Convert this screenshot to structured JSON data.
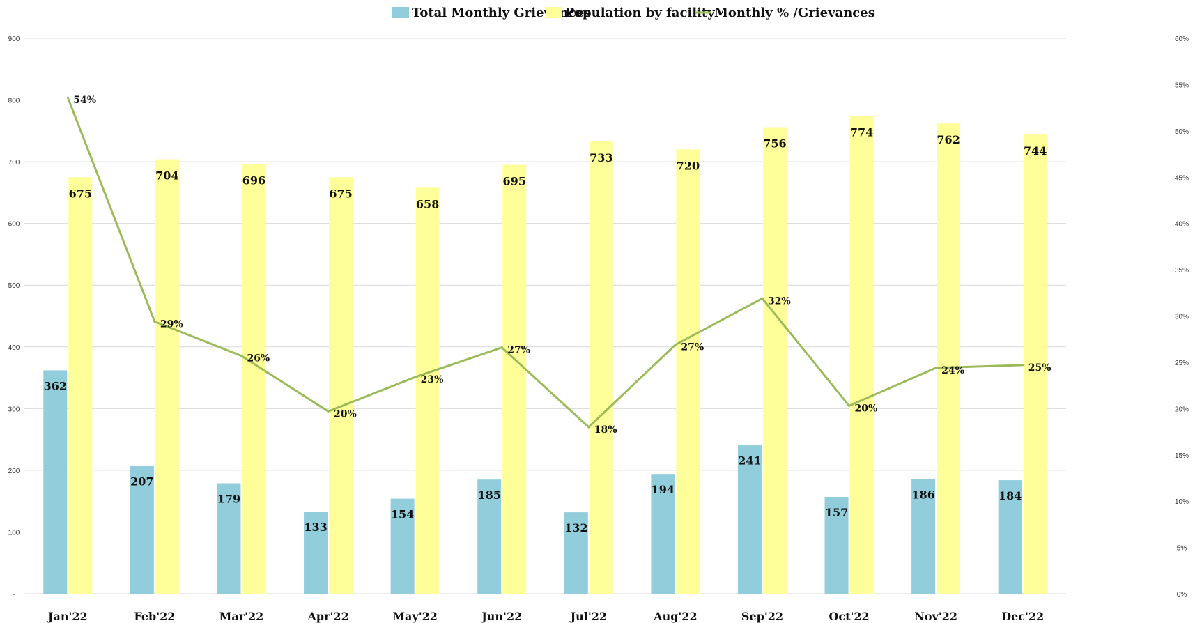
{
  "colors": {
    "grievances": "#92CDDC",
    "population": "#FFFF99",
    "percent_line": "#9BBB59",
    "grid": "#D9D9D9"
  },
  "legend": {
    "grievances_label": "Total Monthly Grievances",
    "population_label": "Population by facility",
    "percent_label": "Monthly % /Grievances"
  },
  "chart_data": {
    "type": "bar",
    "categories": [
      "Jan'22",
      "Feb'22",
      "Mar'22",
      "Apr'22",
      "May'22",
      "Jun'22",
      "Jul'22",
      "Aug'22",
      "Sep'22",
      "Oct'22",
      "Nov'22",
      "Dec'22"
    ],
    "series": [
      {
        "name": "Total Monthly Grievances",
        "type": "bar",
        "axis": "left",
        "values": [
          362,
          207,
          179,
          133,
          154,
          185,
          132,
          194,
          241,
          157,
          186,
          184
        ],
        "labels": [
          "362",
          "207",
          "179",
          "133",
          "154",
          "185",
          "132",
          "194",
          "241",
          "157",
          "186",
          "184"
        ]
      },
      {
        "name": "Population by facility",
        "type": "bar",
        "axis": "left",
        "values": [
          675,
          704,
          696,
          675,
          658,
          695,
          733,
          720,
          756,
          774,
          762,
          744
        ],
        "labels": [
          "675",
          "704",
          "696",
          "675",
          "658",
          "695",
          "733",
          "720",
          "756",
          "774",
          "762",
          "744"
        ]
      },
      {
        "name": "Monthly % /Grievances",
        "type": "line",
        "axis": "right",
        "values": [
          53.6,
          29.4,
          25.7,
          19.7,
          23.4,
          26.6,
          18.0,
          26.9,
          31.9,
          20.3,
          24.4,
          24.7
        ],
        "labels": [
          "54%",
          "29%",
          "26%",
          "20%",
          "23%",
          "27%",
          "18%",
          "27%",
          "32%",
          "20%",
          "24%",
          "25%"
        ]
      }
    ],
    "y_left": {
      "range": [
        0,
        900
      ],
      "ticks": [
        0,
        100,
        200,
        300,
        400,
        500,
        600,
        700,
        800,
        900
      ],
      "tick_labels": [
        "-",
        "100",
        "200",
        "300",
        "400",
        "500",
        "600",
        "700",
        "800",
        "900"
      ]
    },
    "y_right": {
      "range": [
        0,
        60
      ],
      "ticks": [
        0,
        5,
        10,
        15,
        20,
        25,
        30,
        35,
        40,
        45,
        50,
        55,
        60
      ],
      "tick_labels": [
        "0%",
        "5%",
        "10%",
        "15%",
        "20%",
        "25%",
        "30%",
        "35%",
        "40%",
        "45%",
        "50%",
        "55%",
        "60%"
      ]
    },
    "grid": true,
    "legend_position": "top-center"
  }
}
